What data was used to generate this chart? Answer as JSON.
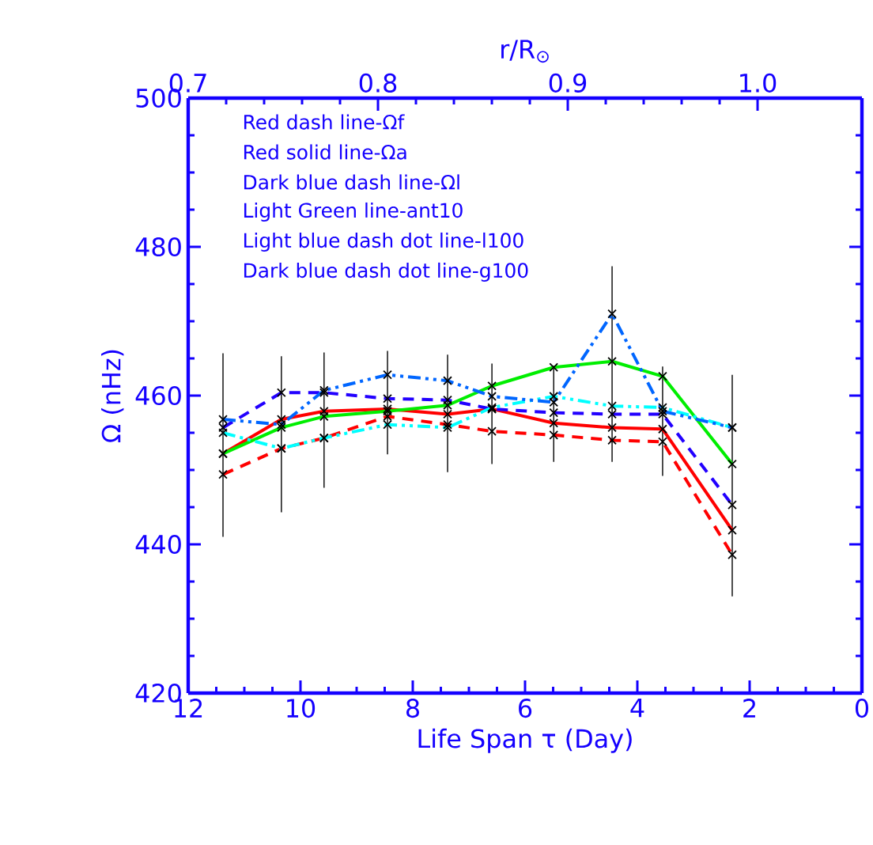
{
  "chart_data": {
    "type": "line",
    "xlabel": "Life Span τ (Day)",
    "ylabel": "Ω (nHz)",
    "x2label": "r/R$_{⊙}$",
    "x": [
      11.38,
      10.34,
      9.58,
      8.45,
      7.38,
      6.59,
      5.49,
      4.45,
      3.55,
      2.31
    ],
    "xlim": [
      12,
      0
    ],
    "xticks": [
      12,
      10,
      8,
      6,
      4,
      2,
      0
    ],
    "x2lim": [
      0.7,
      1.055
    ],
    "x2ticks": [
      0.7,
      0.8,
      0.9,
      {
        "value": 1.0,
        "label": "1.0"
      }
    ],
    "ylim": [
      420,
      500
    ],
    "yticks": [
      420,
      440,
      460,
      480,
      500
    ],
    "marker": "cross",
    "series": [
      {
        "color": "#ff0000",
        "line_style": "dashed",
        "values": [
          449.4,
          452.9,
          454.3,
          457.2,
          456.1,
          455.2,
          454.7,
          454.0,
          453.8,
          438.6
        ]
      },
      {
        "color": "#ff0000",
        "line_style": "solid",
        "values": [
          452.2,
          456.8,
          457.9,
          458.2,
          457.5,
          458.2,
          456.3,
          455.7,
          455.5,
          441.9
        ],
        "errors": [
          [
            441,
            465.7
          ],
          [
            444.3,
            465.3
          ],
          [
            447.6,
            465.8
          ],
          [
            452.1,
            466.0
          ],
          [
            449.7,
            465.5
          ],
          [
            450.8,
            464.3
          ],
          [
            451.1,
            464.0
          ],
          [
            451.1,
            477.4
          ],
          [
            449.2,
            463.9
          ],
          [
            433.0,
            462.8
          ]
        ]
      },
      {
        "color": "#2200ff",
        "line_style": "dashed",
        "values": [
          455.7,
          460.4,
          460.4,
          459.6,
          459.4,
          458.2,
          457.7,
          457.5,
          457.5,
          445.3
        ]
      },
      {
        "color": "#00ee00",
        "line_style": "solid",
        "values": [
          452.2,
          455.7,
          457.2,
          457.9,
          458.7,
          461.3,
          463.8,
          464.6,
          462.6,
          450.8
        ]
      },
      {
        "color": "#00ffff",
        "line_style": "dashdot",
        "values": [
          455.0,
          452.9,
          454.3,
          456.1,
          455.7,
          458.4,
          459.9,
          458.6,
          458.4,
          455.7
        ]
      },
      {
        "color": "#0066ff",
        "line_style": "dashdot",
        "values": [
          456.8,
          456.1,
          460.7,
          462.8,
          462.0,
          459.9,
          459.1,
          471.0,
          457.9,
          455.7
        ]
      }
    ],
    "annotations": [
      "Red dash line-Ωf",
      "Red solid line-Ωa",
      "Dark blue dash line-Ωl",
      "Light Green line-ant10",
      "Light blue dash dot line-l100",
      "Dark blue dash dot line-g100"
    ]
  }
}
